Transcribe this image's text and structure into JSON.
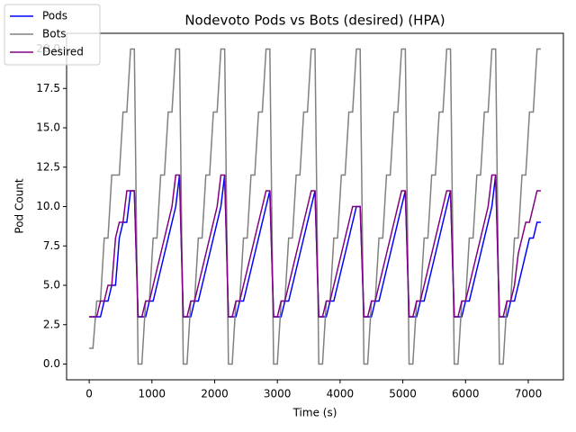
{
  "chart_data": {
    "type": "line",
    "title": "Nodevoto Pods vs Bots (desired)  (HPA)",
    "xlabel": "Time (s)",
    "ylabel": "Pod Count",
    "x": [
      0,
      60,
      120,
      180,
      240,
      300,
      360,
      420,
      480,
      540,
      600,
      660,
      720,
      780,
      840,
      900,
      960,
      1020,
      1080,
      1140,
      1200,
      1260,
      1320,
      1380,
      1440,
      1500,
      1560,
      1620,
      1680,
      1740,
      1800,
      1860,
      1920,
      1980,
      2040,
      2100,
      2160,
      2220,
      2280,
      2340,
      2400,
      2460,
      2520,
      2580,
      2640,
      2700,
      2760,
      2820,
      2880,
      2940,
      3000,
      3060,
      3120,
      3180,
      3240,
      3300,
      3360,
      3420,
      3480,
      3540,
      3600,
      3660,
      3720,
      3780,
      3840,
      3900,
      3960,
      4020,
      4080,
      4140,
      4200,
      4260,
      4320,
      4380,
      4440,
      4500,
      4560,
      4620,
      4680,
      4740,
      4800,
      4860,
      4920,
      4980,
      5040,
      5100,
      5160,
      5220,
      5280,
      5340,
      5400,
      5460,
      5520,
      5580,
      5640,
      5700,
      5760,
      5820,
      5880,
      5940,
      6000,
      6060,
      6120,
      6180,
      6240,
      6300,
      6360,
      6420,
      6480,
      6540,
      6600,
      6660,
      6720,
      6780,
      6840,
      6900,
      6960,
      7020,
      7080,
      7140,
      7200
    ],
    "series": [
      {
        "name": "Pods",
        "color": "#0000ff",
        "values": [
          3,
          3,
          3,
          3,
          4,
          4,
          5,
          5,
          8,
          9,
          9,
          11,
          11,
          3,
          3,
          3,
          4,
          4,
          5,
          6,
          7,
          8,
          9,
          10,
          12,
          3,
          3,
          3,
          4,
          4,
          5,
          6,
          7,
          8,
          9,
          10,
          12,
          3,
          3,
          3,
          4,
          4,
          5,
          6,
          7,
          8,
          9,
          10,
          11,
          3,
          3,
          3,
          4,
          4,
          5,
          6,
          7,
          8,
          9,
          10,
          11,
          3,
          3,
          3,
          4,
          4,
          5,
          6,
          7,
          8,
          9,
          10,
          10,
          3,
          3,
          3,
          4,
          4,
          5,
          6,
          7,
          8,
          9,
          10,
          11,
          3,
          3,
          3,
          4,
          4,
          5,
          6,
          7,
          8,
          9,
          10,
          11,
          3,
          3,
          3,
          4,
          4,
          5,
          6,
          7,
          8,
          9,
          10,
          12,
          3,
          3,
          3,
          4,
          4,
          5,
          6,
          7,
          8,
          8,
          9,
          9
        ]
      },
      {
        "name": "Bots",
        "color": "#808080",
        "values": [
          1,
          1,
          4,
          4,
          8,
          8,
          12,
          12,
          12,
          16,
          16,
          20,
          20,
          0,
          0,
          4,
          4,
          8,
          8,
          12,
          12,
          16,
          16,
          20,
          20,
          0,
          0,
          4,
          4,
          8,
          8,
          12,
          12,
          16,
          16,
          20,
          20,
          0,
          0,
          4,
          4,
          8,
          8,
          12,
          12,
          16,
          16,
          20,
          20,
          0,
          0,
          4,
          4,
          8,
          8,
          12,
          12,
          16,
          16,
          20,
          20,
          0,
          0,
          4,
          4,
          8,
          8,
          12,
          12,
          16,
          16,
          20,
          20,
          0,
          0,
          4,
          4,
          8,
          8,
          12,
          12,
          16,
          16,
          20,
          20,
          0,
          0,
          4,
          4,
          8,
          8,
          12,
          12,
          16,
          16,
          20,
          20,
          0,
          0,
          4,
          4,
          8,
          8,
          12,
          12,
          16,
          16,
          20,
          20,
          0,
          0,
          4,
          4,
          8,
          8,
          12,
          12,
          16,
          16,
          20,
          20
        ]
      },
      {
        "name": "Desired",
        "color": "#800080",
        "values": [
          3,
          3,
          3,
          4,
          4,
          5,
          5,
          8,
          9,
          9,
          11,
          11,
          11,
          3,
          3,
          4,
          4,
          5,
          6,
          7,
          8,
          9,
          10,
          12,
          12,
          3,
          3,
          4,
          4,
          5,
          6,
          7,
          8,
          9,
          10,
          12,
          12,
          3,
          3,
          4,
          4,
          5,
          6,
          7,
          8,
          9,
          10,
          11,
          11,
          3,
          3,
          4,
          4,
          5,
          6,
          7,
          8,
          9,
          10,
          11,
          11,
          3,
          3,
          4,
          4,
          5,
          6,
          7,
          8,
          9,
          10,
          10,
          10,
          3,
          3,
          4,
          4,
          5,
          6,
          7,
          8,
          9,
          10,
          11,
          11,
          3,
          3,
          4,
          4,
          5,
          6,
          7,
          8,
          9,
          10,
          11,
          11,
          3,
          3,
          4,
          4,
          5,
          6,
          7,
          8,
          9,
          10,
          12,
          12,
          3,
          3,
          4,
          4,
          5,
          7,
          8,
          9,
          9,
          10,
          11,
          11
        ]
      }
    ],
    "xlim": [
      -360,
      7560
    ],
    "ylim": [
      -1,
      21
    ],
    "xticks": [
      0,
      1000,
      2000,
      3000,
      4000,
      5000,
      6000,
      7000
    ],
    "yticks": [
      {
        "value": 0,
        "label": "0.0"
      },
      2.5,
      {
        "value": 5,
        "label": "5.0"
      },
      7.5,
      {
        "value": 10,
        "label": "10.0"
      },
      12.5,
      {
        "value": 15,
        "label": "15.0"
      },
      17.5,
      {
        "value": 20,
        "label": "20.0"
      }
    ],
    "legend": "upper left"
  }
}
